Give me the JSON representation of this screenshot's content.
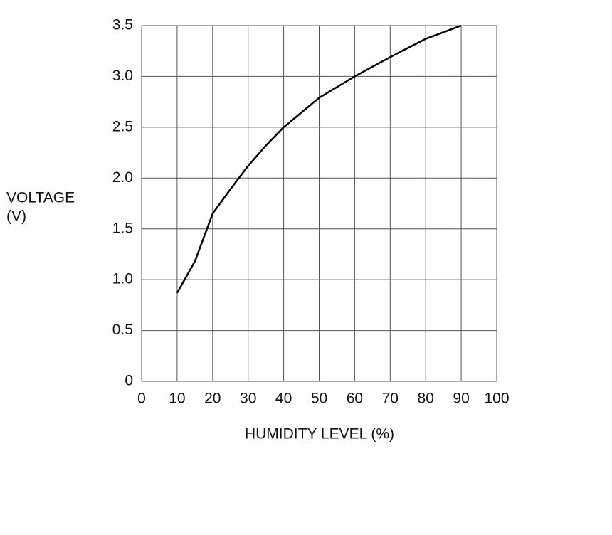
{
  "chart_data": {
    "type": "line",
    "x_label": "HUMIDITY LEVEL (%)",
    "y_label": [
      "VOLTAGE",
      "(V)"
    ],
    "x": [
      10,
      15,
      20,
      25,
      30,
      35,
      40,
      50,
      60,
      70,
      80,
      90
    ],
    "values": [
      0.87,
      1.18,
      1.65,
      1.89,
      2.12,
      2.32,
      2.5,
      2.79,
      3.0,
      3.19,
      3.37,
      3.5
    ],
    "color": "#000000",
    "xlim": [
      0,
      100
    ],
    "xticks": [
      0,
      10,
      20,
      30,
      40,
      50,
      60,
      70,
      80,
      90,
      100
    ],
    "ylim": [
      0,
      3.5
    ],
    "yticks": [
      0,
      0.5,
      {
        "value": 1,
        "label": "1.0"
      },
      1.5,
      {
        "value": 2,
        "label": "2.0"
      },
      2.5,
      {
        "value": 3,
        "label": "3.0"
      },
      3.5
    ],
    "grid": true
  }
}
